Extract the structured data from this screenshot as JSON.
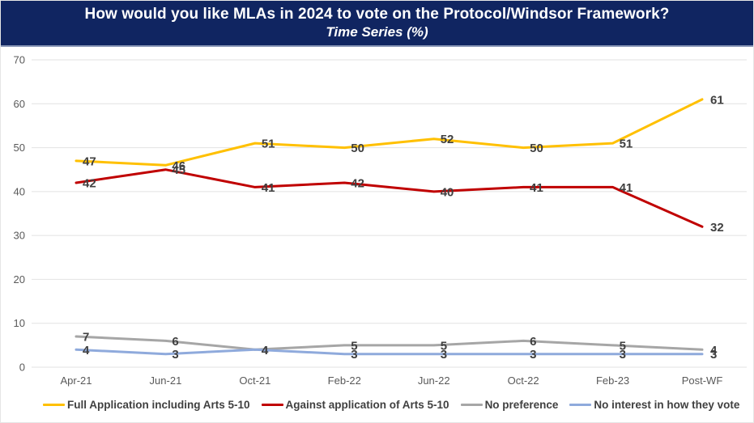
{
  "header": {
    "title": "How would you like MLAs in 2024 to vote on the Protocol/Windsor Framework?",
    "subtitle": "Time Series (%)"
  },
  "colors": {
    "header_bg": "#102561",
    "header_text": "#FFFFFF",
    "background": "#FFFFFF",
    "gridline": "#E2E2E2",
    "axis_text": "#595959",
    "data_label": "#404040",
    "legend_text": "#404040"
  },
  "chart_data": {
    "type": "line",
    "title": "How would you like MLAs in 2024 to vote on the Protocol/Windsor Framework?",
    "subtitle": "Time Series (%)",
    "categories": [
      "Apr-21",
      "Jun-21",
      "Oct-21",
      "Feb-22",
      "Jun-22",
      "Oct-22",
      "Feb-23",
      "Post-WF"
    ],
    "series": [
      {
        "name": "Full Application including Arts 5-10",
        "color": "#FFC000",
        "values": [
          47,
          46,
          51,
          50,
          52,
          50,
          51,
          61
        ]
      },
      {
        "name": "Against application of Arts 5-10",
        "color": "#C00000",
        "values": [
          42,
          45,
          41,
          42,
          40,
          41,
          41,
          32
        ]
      },
      {
        "name": "No preference",
        "color": "#A6A6A6",
        "values": [
          7,
          6,
          4,
          5,
          5,
          6,
          5,
          4
        ]
      },
      {
        "name": "No interest in how they vote",
        "color": "#8FAADC",
        "values": [
          4,
          3,
          4,
          3,
          3,
          3,
          3,
          3
        ]
      }
    ],
    "ylim": [
      0,
      70
    ],
    "yticks": [
      0,
      10,
      20,
      30,
      40,
      50,
      60,
      70
    ],
    "grid": "horizontal",
    "data_labels": true,
    "legend_position": "bottom"
  }
}
